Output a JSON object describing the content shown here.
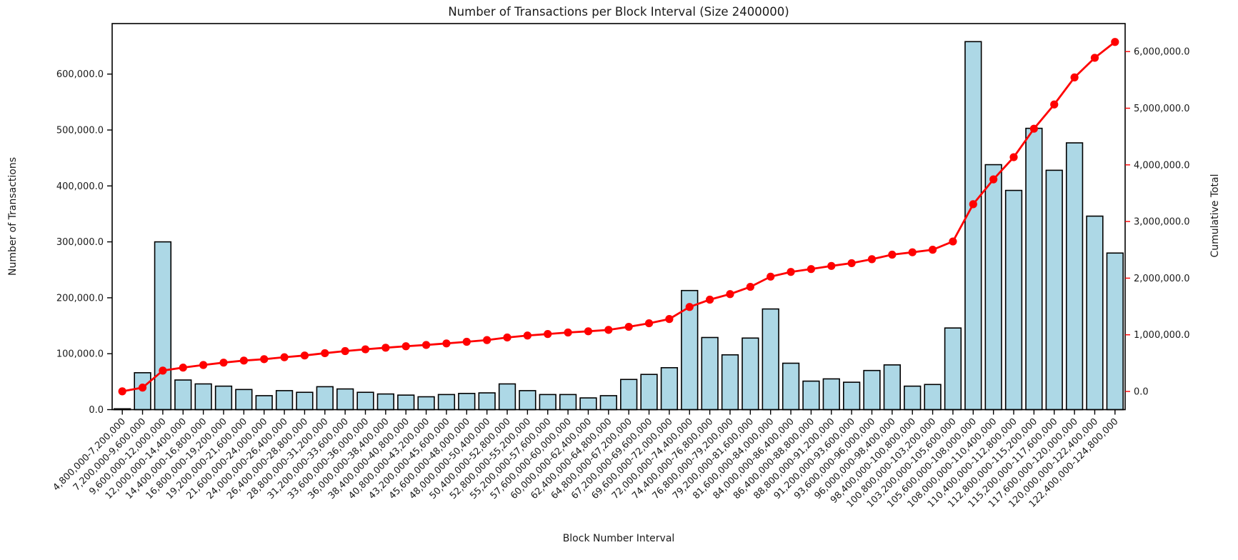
{
  "chart_data": {
    "type": "combo",
    "title": "Number of Transactions per Block Interval (Size 2400000)",
    "xlabel": "Block Number Interval",
    "grid": false,
    "legend": "none",
    "categories": [
      "4,800,000-7,200,000",
      "7,200,000-9,600,000",
      "9,600,000-12,000,000",
      "12,000,000-14,400,000",
      "14,400,000-16,800,000",
      "16,800,000-19,200,000",
      "19,200,000-21,600,000",
      "21,600,000-24,000,000",
      "24,000,000-26,400,000",
      "26,400,000-28,800,000",
      "28,800,000-31,200,000",
      "31,200,000-33,600,000",
      "33,600,000-36,000,000",
      "36,000,000-38,400,000",
      "38,400,000-40,800,000",
      "40,800,000-43,200,000",
      "43,200,000-45,600,000",
      "45,600,000-48,000,000",
      "48,000,000-50,400,000",
      "50,400,000-52,800,000",
      "52,800,000-55,200,000",
      "55,200,000-57,600,000",
      "57,600,000-60,000,000",
      "60,000,000-62,400,000",
      "62,400,000-64,800,000",
      "64,800,000-67,200,000",
      "67,200,000-69,600,000",
      "69,600,000-72,000,000",
      "72,000,000-74,400,000",
      "74,400,000-76,800,000",
      "76,800,000-79,200,000",
      "79,200,000-81,600,000",
      "81,600,000-84,000,000",
      "84,000,000-86,400,000",
      "86,400,000-88,800,000",
      "88,800,000-91,200,000",
      "91,200,000-93,600,000",
      "93,600,000-96,000,000",
      "96,000,000-98,400,000",
      "98,400,000-100,800,000",
      "100,800,000-103,200,000",
      "103,200,000-105,600,000",
      "105,600,000-108,000,000",
      "108,000,000-110,400,000",
      "110,400,000-112,800,000",
      "112,800,000-115,200,000",
      "115,200,000-117,600,000",
      "117,600,000-120,000,000",
      "120,000,000-122,400,000",
      "122,400,000-124,800,000"
    ],
    "series": [
      {
        "name": "Number of Transactions",
        "type": "bar",
        "axis": "left",
        "color": "#add8e6",
        "edge_color": "#000000",
        "values": [
          1500,
          66000,
          300000,
          53000,
          46000,
          42000,
          36000,
          25000,
          34000,
          31000,
          41000,
          37000,
          31000,
          28000,
          26000,
          23000,
          27000,
          29000,
          30000,
          46000,
          34000,
          27000,
          27000,
          21000,
          25000,
          54000,
          63000,
          75000,
          213000,
          129000,
          98000,
          128000,
          180000,
          83000,
          51000,
          55000,
          49000,
          70000,
          80000,
          42000,
          45000,
          146000,
          658000,
          438000,
          392000,
          503000,
          428000,
          477000,
          346000,
          280000
        ]
      },
      {
        "name": "Cumulative Total",
        "type": "line",
        "axis": "right",
        "color": "#ff0000",
        "marker": "circle",
        "values": [
          1500,
          67500,
          367500,
          420500,
          466500,
          508500,
          544500,
          569500,
          603500,
          634500,
          675500,
          712500,
          743500,
          771500,
          797500,
          820500,
          847500,
          876500,
          906500,
          952500,
          986500,
          1013500,
          1040500,
          1061500,
          1086500,
          1140500,
          1203500,
          1278500,
          1491500,
          1620500,
          1718500,
          1846500,
          2026500,
          2109500,
          2160500,
          2215500,
          2264500,
          2334500,
          2414500,
          2456500,
          2501500,
          2647500,
          3305500,
          3743500,
          4135500,
          4638500,
          5066500,
          5543500,
          5889500,
          6169500
        ]
      }
    ],
    "left_axis": {
      "label": "Number of Transactions",
      "color": "#1a1a1a",
      "tick_values": [
        0,
        100000,
        200000,
        300000,
        400000,
        500000,
        600000
      ],
      "tick_labels": [
        "0.0",
        "100,000.0",
        "200,000.0",
        "300,000.0",
        "400,000.0",
        "500,000.0",
        "600,000.0"
      ],
      "range": [
        0,
        690300
      ]
    },
    "right_axis": {
      "label": "Cumulative Total",
      "color": "#ff0000",
      "tick_values": [
        0,
        1000000,
        2000000,
        3000000,
        4000000,
        5000000,
        6000000
      ],
      "tick_labels": [
        "0.0",
        "1,000,000.0",
        "2,000,000.0",
        "3,000,000.0",
        "4,000,000.0",
        "5,000,000.0",
        "6,000,000.0"
      ],
      "range": [
        -321500,
        6494300
      ]
    }
  }
}
